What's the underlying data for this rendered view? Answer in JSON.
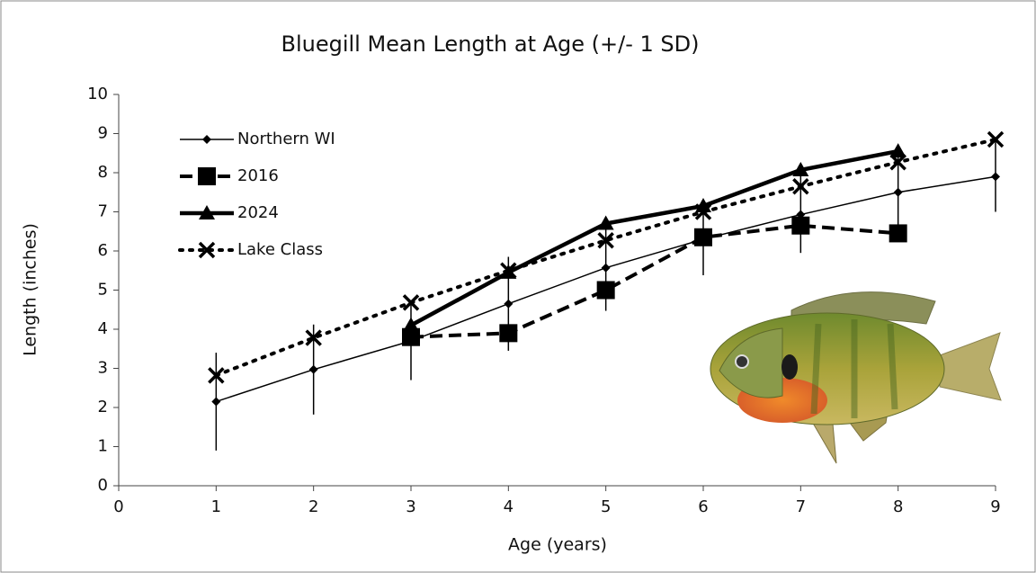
{
  "chart_data": {
    "type": "line",
    "title": "Bluegill  Mean Length at Age (+/- 1 SD)",
    "x_label": "Age (years)",
    "y_label": "Length (inches)",
    "x": [
      1,
      2,
      3,
      4,
      5,
      6,
      7,
      8,
      9
    ],
    "xlim": [
      0,
      9
    ],
    "xticks": [
      0,
      1,
      2,
      3,
      4,
      5,
      6,
      7,
      8,
      9
    ],
    "ylim": [
      0,
      10
    ],
    "yticks": [
      0,
      1,
      2,
      3,
      4,
      5,
      6,
      7,
      8,
      9,
      10
    ],
    "legend": "top-left",
    "series": [
      {
        "name": "Northern WI",
        "color": "#000000",
        "marker": "diamond",
        "dash": "solid",
        "values": [
          2.15,
          2.97,
          3.7,
          4.65,
          5.57,
          6.3,
          6.93,
          7.5,
          7.9
        ],
        "errors": [
          1.25,
          1.15,
          1.0,
          1.2,
          1.1,
          0.92,
          0.98,
          1.1,
          0.9
        ]
      },
      {
        "name": "2016",
        "color": "#000000",
        "marker": "square",
        "dash": "dashed",
        "values": [
          null,
          null,
          3.8,
          3.9,
          5.0,
          6.35,
          6.65,
          6.45,
          null
        ]
      },
      {
        "name": "2024",
        "color": "#000000",
        "marker": "triangle",
        "dash": "solid-thick",
        "values": [
          null,
          null,
          4.1,
          5.45,
          6.7,
          7.15,
          8.07,
          8.55,
          null
        ]
      },
      {
        "name": "Lake Class",
        "color": "#000000",
        "marker": "x",
        "dash": "dotted",
        "values": [
          2.82,
          3.78,
          4.68,
          5.5,
          6.27,
          7.0,
          7.65,
          8.27,
          8.85
        ]
      }
    ]
  }
}
